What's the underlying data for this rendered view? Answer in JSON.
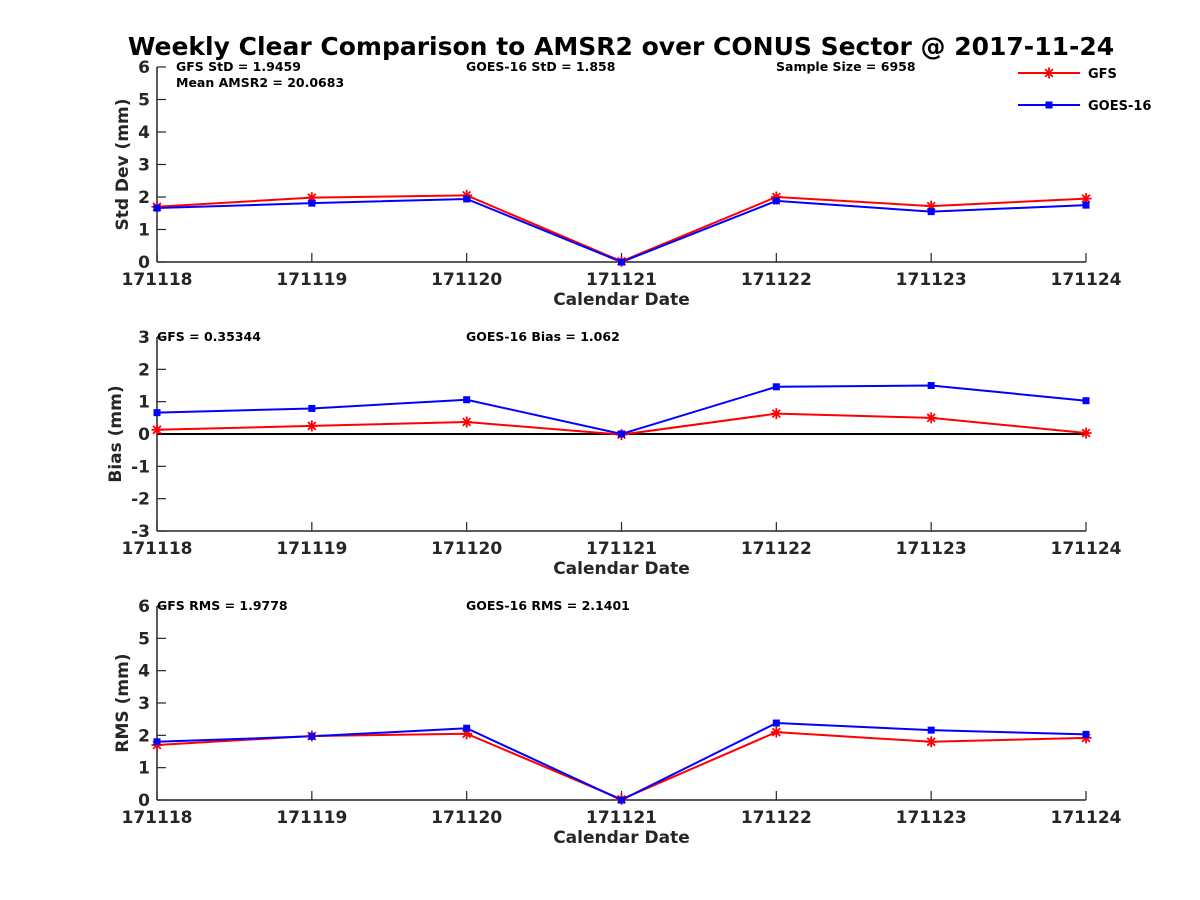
{
  "title": "Weekly Clear Comparison to AMSR2 over CONUS Sector @ 2017-11-24",
  "colors": {
    "gfs": "#ff0000",
    "goes": "#0000ff",
    "axis": "#262626",
    "zero_line": "#000000"
  },
  "legend": [
    {
      "label": "GFS",
      "marker": "star",
      "color": "#ff0000"
    },
    {
      "label": "GOES-16",
      "marker": "square",
      "color": "#0000ff"
    }
  ],
  "chart_data": [
    {
      "type": "line",
      "id": "std",
      "categories": [
        "171118",
        "171119",
        "171120",
        "171121",
        "171122",
        "171123",
        "171124"
      ],
      "xlabel": "Calendar Date",
      "ylabel": "Std Dev (mm)",
      "ylim": [
        0,
        6
      ],
      "yticks": [
        "0",
        "1",
        "2",
        "3",
        "4",
        "5",
        "6"
      ],
      "series": [
        {
          "name": "GFS",
          "values": [
            1.7,
            1.98,
            2.05,
            0.02,
            2.0,
            1.72,
            1.95
          ]
        },
        {
          "name": "GOES-16",
          "values": [
            1.66,
            1.81,
            1.94,
            0.0,
            1.88,
            1.55,
            1.75
          ]
        }
      ],
      "annotations": [
        "GFS StD = 1.9459",
        "Mean AMSR2 = 20.0683",
        "GOES-16 StD = 1.858",
        "Sample Size = 6958"
      ]
    },
    {
      "type": "line",
      "id": "bias",
      "categories": [
        "171118",
        "171119",
        "171120",
        "171121",
        "171122",
        "171123",
        "171124"
      ],
      "xlabel": "Calendar Date",
      "ylabel": "Bias (mm)",
      "ylim": [
        -3,
        3
      ],
      "yticks": [
        "-3",
        "-2",
        "-1",
        "0",
        "1",
        "2",
        "3"
      ],
      "zero_line": true,
      "series": [
        {
          "name": "GFS",
          "values": [
            0.13,
            0.25,
            0.37,
            -0.02,
            0.63,
            0.5,
            0.03
          ]
        },
        {
          "name": "GOES-16",
          "values": [
            0.66,
            0.79,
            1.06,
            0.0,
            1.46,
            1.5,
            1.03
          ]
        }
      ],
      "annotations": [
        "GFS = 0.35344",
        "GOES-16 Bias  = 1.062"
      ]
    },
    {
      "type": "line",
      "id": "rms",
      "categories": [
        "171118",
        "171119",
        "171120",
        "171121",
        "171122",
        "171123",
        "171124"
      ],
      "xlabel": "Calendar Date",
      "ylabel": "RMS (mm)",
      "ylim": [
        0,
        6
      ],
      "yticks": [
        "0",
        "1",
        "2",
        "3",
        "4",
        "5",
        "6"
      ],
      "series": [
        {
          "name": "GFS",
          "values": [
            1.7,
            1.98,
            2.05,
            0.02,
            2.1,
            1.8,
            1.92
          ]
        },
        {
          "name": "GOES-16",
          "values": [
            1.8,
            1.97,
            2.22,
            0.0,
            2.38,
            2.16,
            2.03
          ]
        }
      ],
      "annotations": [
        "GFS RMS = 1.9778",
        "GOES-16 RMS = 2.1401"
      ]
    }
  ]
}
